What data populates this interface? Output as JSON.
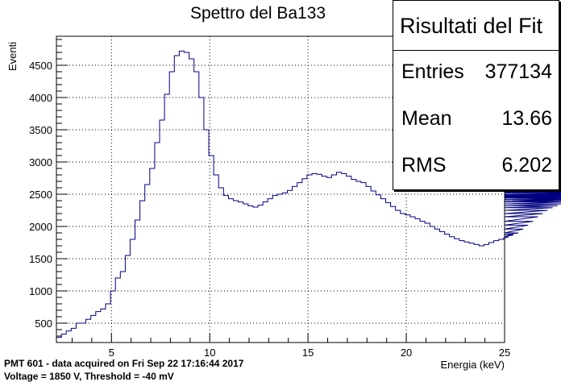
{
  "chart_data": {
    "type": "histogram",
    "title": "Spettro del Ba133",
    "xlabel": "Energia (keV)",
    "ylabel": "Eventi",
    "xlim": [
      2.2,
      25
    ],
    "ylim": [
      200,
      4950
    ],
    "x_ticks": [
      5,
      10,
      15,
      20,
      25
    ],
    "y_ticks": [
      500,
      1000,
      1500,
      2000,
      2500,
      3000,
      3500,
      4000,
      4500
    ],
    "grid": true,
    "line_color": "#000080",
    "bin_start": 2.2,
    "bin_width": 0.25,
    "values": [
      280,
      330,
      380,
      420,
      500,
      500,
      560,
      620,
      680,
      720,
      800,
      1000,
      1200,
      1300,
      1550,
      1800,
      2100,
      2400,
      2650,
      2900,
      3300,
      3650,
      4050,
      4400,
      4650,
      4720,
      4700,
      4600,
      4400,
      4000,
      3500,
      3100,
      2800,
      2600,
      2480,
      2430,
      2400,
      2380,
      2350,
      2320,
      2300,
      2330,
      2380,
      2430,
      2480,
      2500,
      2520,
      2560,
      2620,
      2680,
      2740,
      2800,
      2820,
      2810,
      2780,
      2760,
      2800,
      2840,
      2820,
      2780,
      2730,
      2700,
      2680,
      2620,
      2550,
      2490,
      2430,
      2370,
      2310,
      2250,
      2200,
      2180,
      2150,
      2120,
      2080,
      2050,
      2000,
      1960,
      1920,
      1880,
      1840,
      1810,
      1780,
      1760,
      1740,
      1720,
      1700,
      1720,
      1750,
      1780,
      1800,
      1820,
      1840,
      1870,
      1900,
      1960,
      2020,
      2080,
      2150,
      2200,
      2250,
      2290,
      2320,
      2350,
      2380,
      2400,
      2420,
      2440,
      2450,
      2460,
      2470,
      2480,
      2490,
      2500,
      2520,
      2530,
      2540,
      2560,
      2580,
      2600
    ]
  },
  "stats": {
    "title": "Risultati del Fit",
    "rows": [
      {
        "label": "Entries",
        "value": "377134"
      },
      {
        "label": "Mean",
        "value": "13.66"
      },
      {
        "label": "RMS",
        "value": "6.202"
      }
    ]
  },
  "footer": {
    "line1": "PMT 601 - data acquired on Fri Sep 22 17:16:44 2017",
    "line2": "Voltage = 1850 V, Threshold = -40 mV"
  }
}
